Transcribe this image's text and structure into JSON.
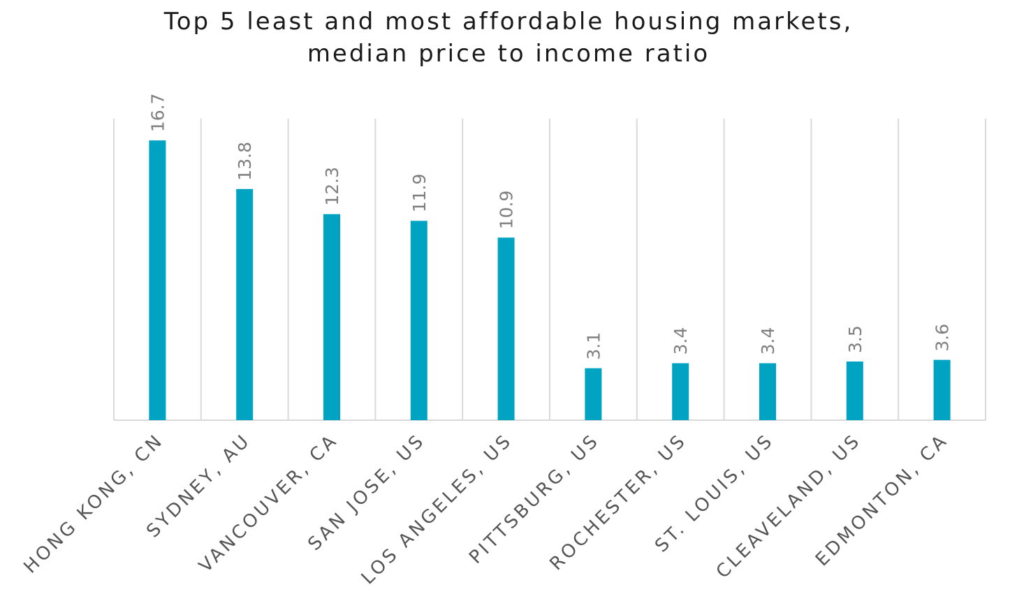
{
  "chart_data": {
    "type": "bar",
    "title_lines": [
      "Top 5 least and most affordable housing markets,",
      "median price to income ratio"
    ],
    "categories": [
      "HONG KONG, CN",
      "SYDNEY, AU",
      "VANCOUVER, CA",
      "SAN JOSE, US",
      "LOS ANGELES, US",
      "PITTSBURG, US",
      "ROCHESTER, US",
      "ST. LOUIS, US",
      "CLEAVELAND, US",
      "EDMONTON, CA"
    ],
    "values": [
      16.7,
      13.8,
      12.3,
      11.9,
      10.9,
      3.1,
      3.4,
      3.4,
      3.5,
      3.6
    ],
    "value_labels": [
      "16.7",
      "13.8",
      "12.3",
      "11.9",
      "10.9",
      "3.1",
      "3.4",
      "3.4",
      "3.5",
      "3.6"
    ],
    "xlabel": "",
    "ylabel": "",
    "ylim": [
      0,
      18
    ],
    "grid": "vertical separators",
    "legend": "none",
    "bar_color": "#00a3c1",
    "grid_color": "#d9d9d9",
    "label_color": "#7f7f7f",
    "category_color": "#555555",
    "title_color": "#1a1a1a"
  }
}
